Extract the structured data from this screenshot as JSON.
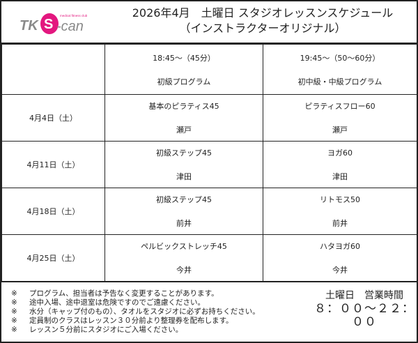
{
  "header": {
    "logo_text": "TK S-can medical fitness club",
    "title_line1": "2026年4月　土曜日 スタジオレッスンスケジュール",
    "title_line2": "（インストラクターオリジナル）",
    "brand_color": "#e3177f",
    "logo_gray": "#8a8a8a"
  },
  "columns": [
    {
      "time": "18:45～（45分）",
      "level": "初級プログラム"
    },
    {
      "time": "19:45～（50～60分）",
      "level": "初中級・中級プログラム"
    }
  ],
  "rows": [
    {
      "date": "4月4日（土）",
      "cells": [
        {
          "program": "基本のピラティス45",
          "instructor": "瀬戸"
        },
        {
          "program": "ピラティスフロー60",
          "instructor": "瀬戸"
        }
      ]
    },
    {
      "date": "4月11日（土）",
      "cells": [
        {
          "program": "初級ステップ45",
          "instructor": "津田"
        },
        {
          "program": "ヨガ60",
          "instructor": "津田"
        }
      ]
    },
    {
      "date": "4月18日（土）",
      "cells": [
        {
          "program": "初級ステップ45",
          "instructor": "前井"
        },
        {
          "program": "リトモス50",
          "instructor": "前井"
        }
      ]
    },
    {
      "date": "4月25日（土）",
      "cells": [
        {
          "program": "ペルビックストレッチ45",
          "instructor": "今井"
        },
        {
          "program": "ハタヨガ60",
          "instructor": "今井"
        }
      ]
    }
  ],
  "footer": {
    "mark": "※",
    "notes": [
      "プログラム、担当者は予告なく変更することがあります。",
      "途中入場、途中退室は危険ですのでご遠慮ください。",
      "水分（キャップ付のもの）、タオルをスタジオに必ずお持ちください。",
      "定員制のクラスはレッスン３０分前より整理券を配布します。",
      "レッスン５分前にスタジオにご入場ください。"
    ],
    "hours_label": "土曜日　営業時間",
    "hours": "８：００～２２：００"
  }
}
